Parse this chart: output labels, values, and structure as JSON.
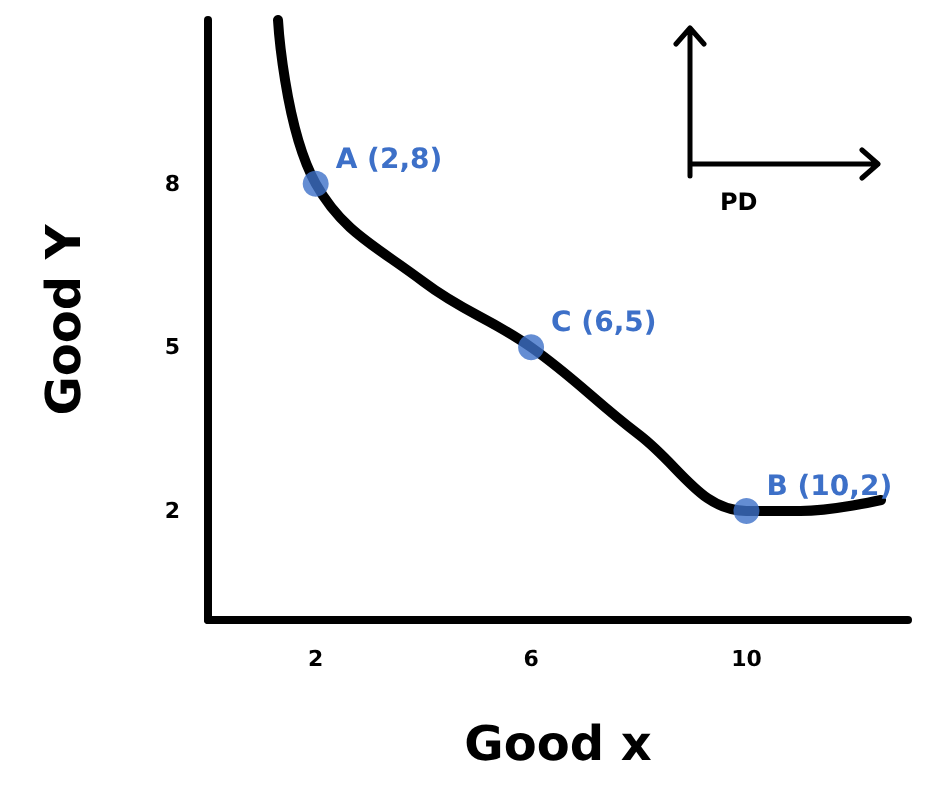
{
  "chart_data": {
    "type": "line",
    "xlabel": "Good x",
    "ylabel": "Good Y",
    "xlim": [
      0,
      13
    ],
    "ylim": [
      0,
      11
    ],
    "xticks": [
      2,
      6,
      10
    ],
    "yticks": [
      2,
      5,
      8
    ],
    "grid": false,
    "marker": "none",
    "series": [
      {
        "color": "#000000",
        "x": [
          1.3,
          2,
          4,
          6,
          8,
          10,
          11,
          12.5
        ],
        "values": [
          11,
          8,
          6.2,
          5,
          3.4,
          2,
          2,
          2.2
        ]
      },
      {
        "type": "scatter",
        "color": "#3d70c8",
        "x": [
          2,
          6,
          10
        ],
        "values": [
          8,
          5,
          2
        ],
        "marker": "circle"
      }
    ],
    "annotations": [
      {
        "text": "A (2,8)",
        "x": 2,
        "y": 8
      },
      {
        "text": "C (6,5)",
        "x": 6,
        "y": 5
      },
      {
        "text": "B (10,2)",
        "x": 10,
        "y": 2
      },
      "PD"
    ]
  }
}
